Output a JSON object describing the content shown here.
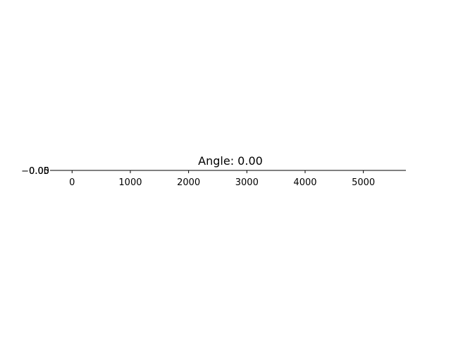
{
  "chart_data": {
    "type": "line",
    "title": "Angle: 0.00",
    "xlabel": "",
    "ylabel": "",
    "xlim": [
      -330,
      5730
    ],
    "ylim": [
      -0.0025,
      0.0025
    ],
    "x_ticks": [
      0,
      1000,
      2000,
      3000,
      4000,
      5000
    ],
    "x_tick_labels": [
      "0",
      "1000",
      "2000",
      "3000",
      "4000",
      "5000"
    ],
    "y_tick_labels": [
      "−0.05",
      "0.00",
      "0.05"
    ],
    "grid": false,
    "series": []
  }
}
